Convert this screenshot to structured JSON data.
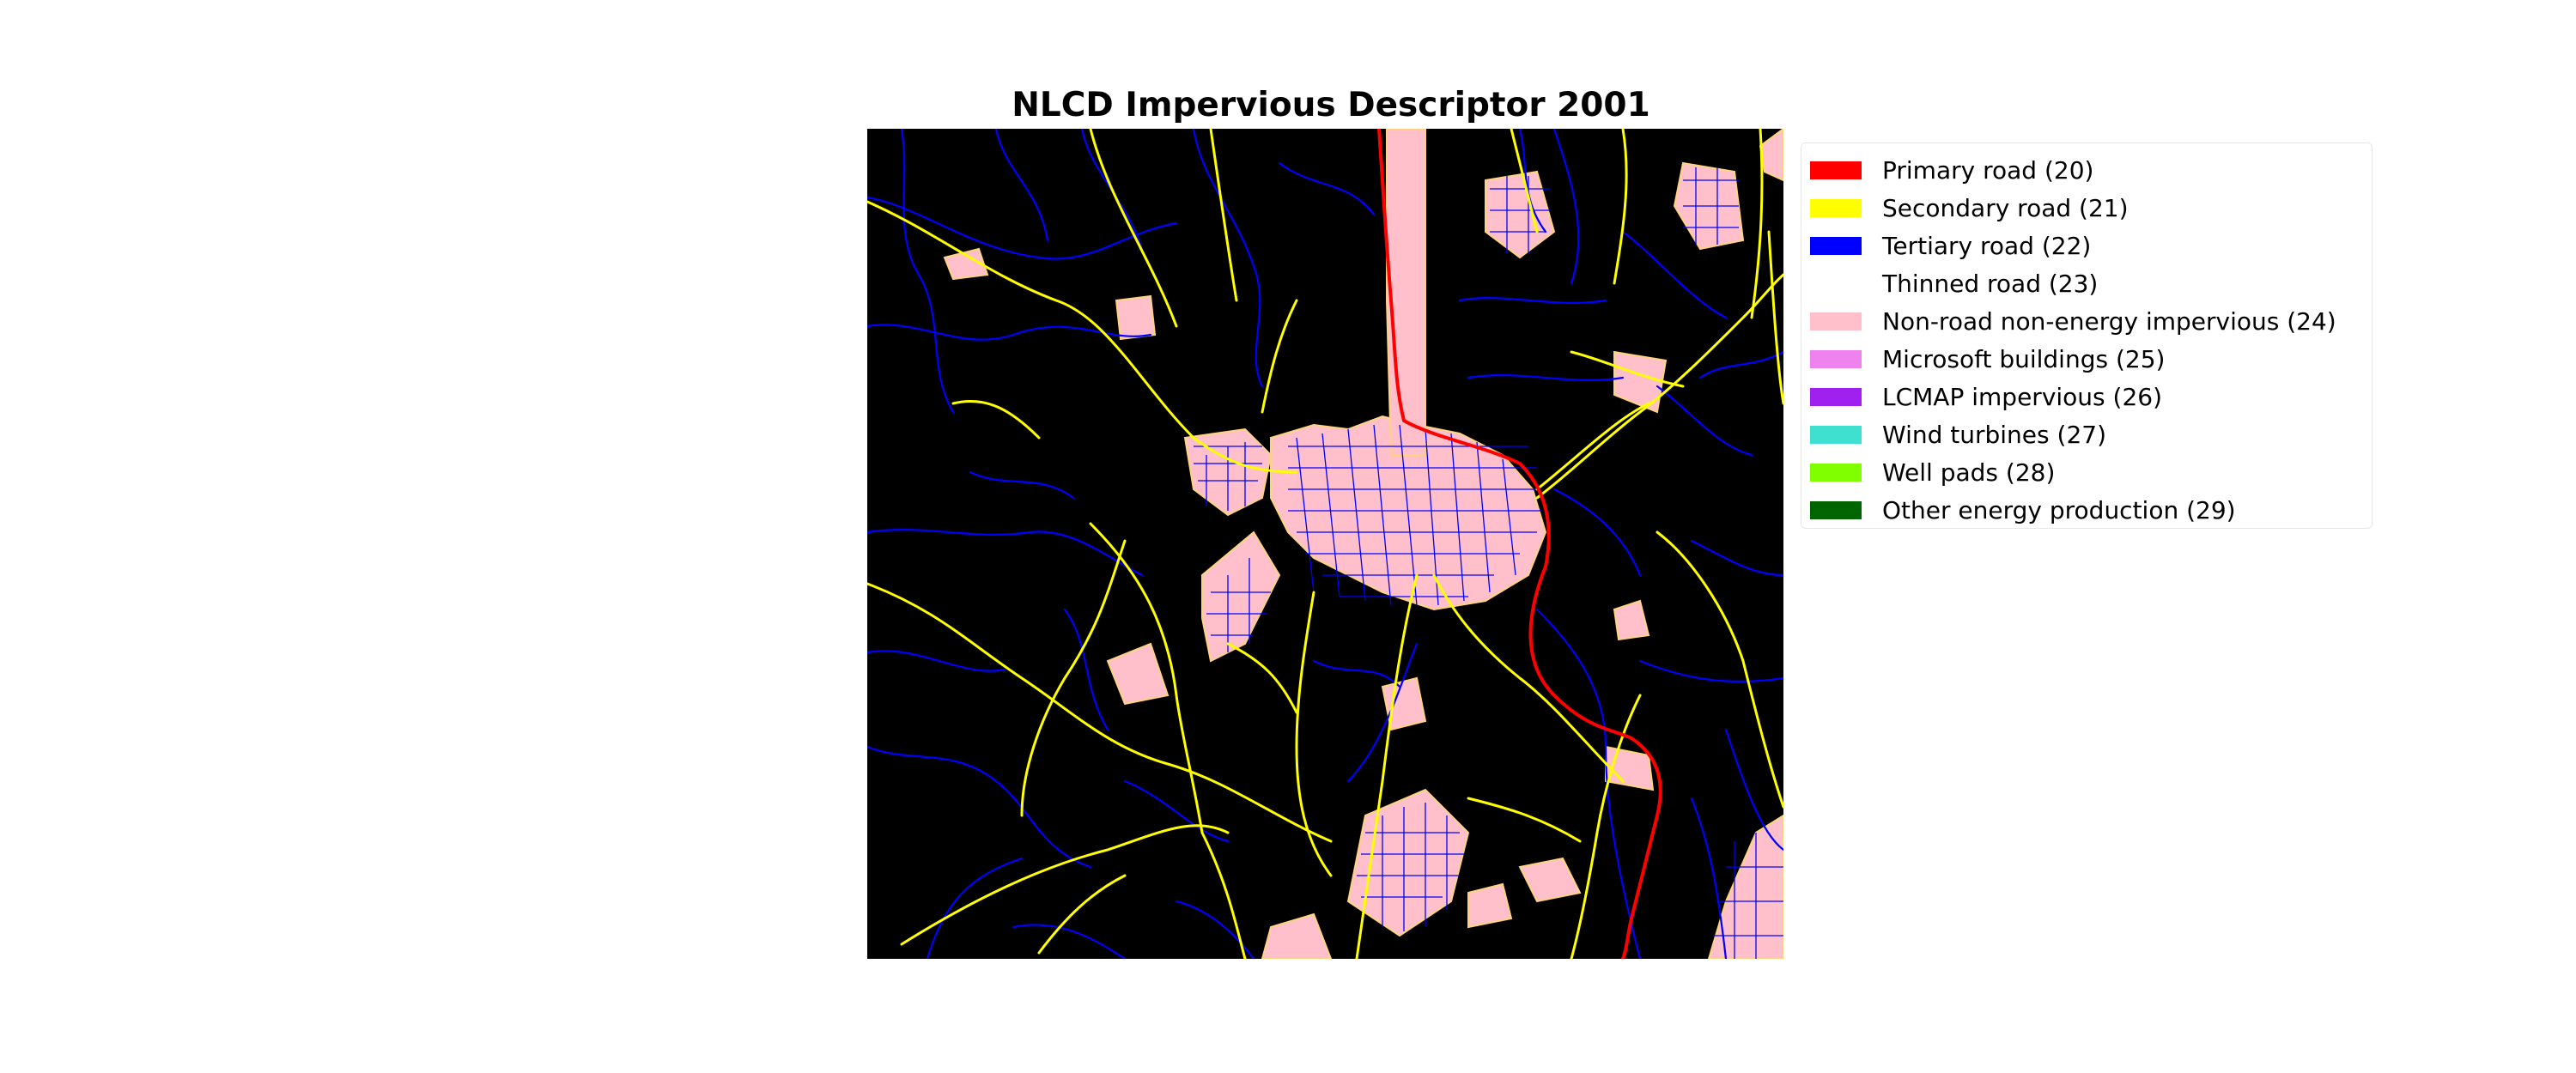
{
  "title": "NLCD Impervious Descriptor 2001",
  "legend": [
    {
      "label": "Primary road (20)",
      "color": "#ff0000"
    },
    {
      "label": "Secondary road (21)",
      "color": "#ffff00"
    },
    {
      "label": "Tertiary road (22)",
      "color": "#0000ff"
    },
    {
      "label": "Thinned road (23)",
      "color": "#ffffff"
    },
    {
      "label": "Non-road non-energy impervious (24)",
      "color": "#ffc0cb"
    },
    {
      "label": "Microsoft buildings (25)",
      "color": "#ee82ee"
    },
    {
      "label": "LCMAP impervious (26)",
      "color": "#a020f0"
    },
    {
      "label": "Wind turbines (27)",
      "color": "#40e0d0"
    },
    {
      "label": "Well pads (28)",
      "color": "#7fff00"
    },
    {
      "label": "Other energy production (29)",
      "color": "#006400"
    }
  ],
  "map": {
    "background_color": "#000000",
    "developed_fill_color": "#ffc0cb",
    "developed_edge_color": "#ffd27f"
  }
}
